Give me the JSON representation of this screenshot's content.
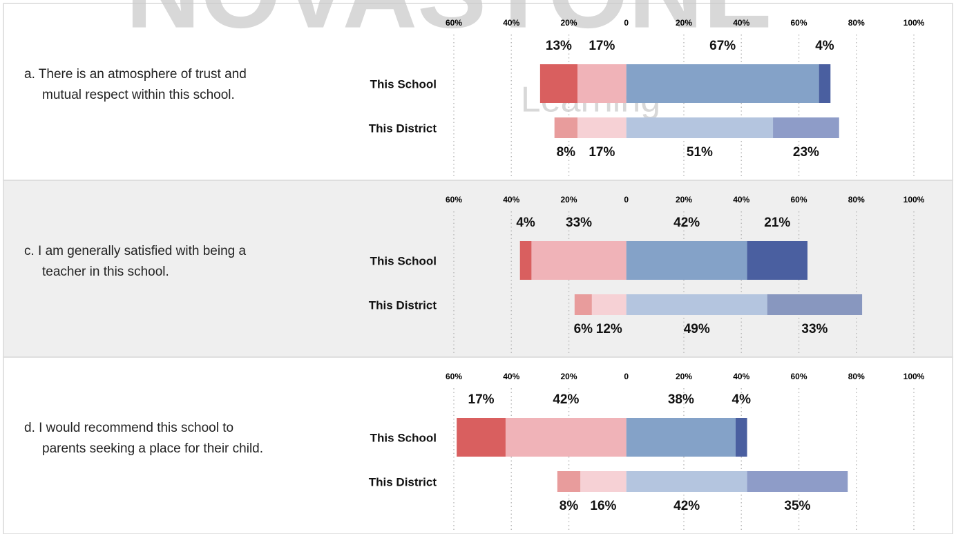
{
  "watermark": {
    "brand": "NOVASTONE",
    "tagline": "Learning"
  },
  "chart_data": [
    {
      "type": "diverging-bar",
      "title": "a. There is an atmosphere of trust and mutual respect within this school.",
      "categories": [
        "This School",
        "This District"
      ],
      "xlim": [
        -60,
        100
      ],
      "xticks": [
        {
          "value": -60,
          "label": "60%"
        },
        {
          "value": -40,
          "label": "40%"
        },
        {
          "value": -20,
          "label": "20%"
        },
        0,
        {
          "value": 20,
          "label": "20%"
        },
        {
          "value": 40,
          "label": "40%"
        },
        {
          "value": 60,
          "label": "60%"
        },
        {
          "value": 80,
          "label": "80%"
        },
        {
          "value": 100,
          "label": "100%"
        }
      ],
      "series": [
        {
          "side": "left",
          "colors": [
            "#d95f5f",
            "#e89c9c"
          ],
          "values": [
            13,
            8
          ],
          "value_labels": [
            "13%",
            "8%"
          ]
        },
        {
          "side": "left",
          "colors": [
            "#f0b3b8",
            "#f6d1d5"
          ],
          "values": [
            17,
            17
          ],
          "value_labels": [
            "17%",
            "17%"
          ]
        },
        {
          "side": "right",
          "colors": [
            "#84a2c8",
            "#b4c5df"
          ],
          "values": [
            67,
            51
          ],
          "value_labels": [
            "67%",
            "51%"
          ]
        },
        {
          "side": "right",
          "colors": [
            "#4a5fa0",
            "#8e9cc8"
          ],
          "values": [
            4,
            23
          ],
          "value_labels": [
            "4%",
            "23%"
          ]
        }
      ]
    },
    {
      "type": "diverging-bar",
      "title": "c. I am generally satisfied with being a teacher in this school.",
      "categories": [
        "This School",
        "This District"
      ],
      "xlim": [
        -60,
        100
      ],
      "xticks": [
        {
          "value": -60,
          "label": "60%"
        },
        {
          "value": -40,
          "label": "40%"
        },
        {
          "value": -20,
          "label": "20%"
        },
        0,
        {
          "value": 20,
          "label": "20%"
        },
        {
          "value": 40,
          "label": "40%"
        },
        {
          "value": 60,
          "label": "60%"
        },
        {
          "value": 80,
          "label": "80%"
        },
        {
          "value": 100,
          "label": "100%"
        }
      ],
      "series": [
        {
          "side": "left",
          "colors": [
            "#d95f5f",
            "#e89c9c"
          ],
          "values": [
            4,
            6
          ],
          "value_labels": [
            "4%",
            "6%"
          ]
        },
        {
          "side": "left",
          "colors": [
            "#f0b3b8",
            "#f6d1d5"
          ],
          "values": [
            33,
            12
          ],
          "value_labels": [
            "33%",
            "12%"
          ]
        },
        {
          "side": "right",
          "colors": [
            "#84a2c8",
            "#b4c5df"
          ],
          "values": [
            42,
            49
          ],
          "value_labels": [
            "42%",
            "49%"
          ]
        },
        {
          "side": "right",
          "colors": [
            "#4a5fa0",
            "#8897bf"
          ],
          "values": [
            21,
            33
          ],
          "value_labels": [
            "21%",
            "33%"
          ]
        }
      ]
    },
    {
      "type": "diverging-bar",
      "title": "d. I would recommend this school to parents seeking a place for their child.",
      "categories": [
        "This School",
        "This District"
      ],
      "xlim": [
        -60,
        100
      ],
      "xticks": [
        {
          "value": -60,
          "label": "60%"
        },
        {
          "value": -40,
          "label": "40%"
        },
        {
          "value": -20,
          "label": "20%"
        },
        0,
        {
          "value": 20,
          "label": "20%"
        },
        {
          "value": 40,
          "label": "40%"
        },
        {
          "value": 60,
          "label": "60%"
        },
        {
          "value": 80,
          "label": "80%"
        },
        {
          "value": 100,
          "label": "100%"
        }
      ],
      "series": [
        {
          "side": "left",
          "colors": [
            "#d95f5f",
            "#e89c9c"
          ],
          "values": [
            17,
            8
          ],
          "value_labels": [
            "17%",
            "8%"
          ]
        },
        {
          "side": "left",
          "colors": [
            "#f0b3b8",
            "#f6d1d5"
          ],
          "values": [
            42,
            16
          ],
          "value_labels": [
            "42%",
            "16%"
          ]
        },
        {
          "side": "right",
          "colors": [
            "#84a2c8",
            "#b4c5df"
          ],
          "values": [
            38,
            42
          ],
          "value_labels": [
            "38%",
            "42%"
          ]
        },
        {
          "side": "right",
          "colors": [
            "#4a5fa0",
            "#8e9cc8"
          ],
          "values": [
            4,
            35
          ],
          "value_labels": [
            "4%",
            "35%"
          ]
        }
      ]
    }
  ]
}
